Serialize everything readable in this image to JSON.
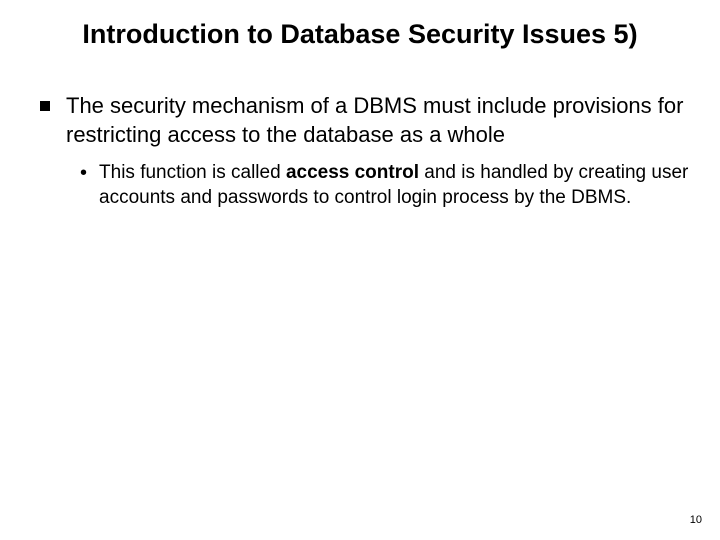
{
  "slide": {
    "title": "Introduction to Database Security Issues 5)",
    "bullets": {
      "main_text": "The security mechanism of a DBMS must include provisions for restricting access to the database as a whole",
      "sub_prefix": "This function is called ",
      "sub_bold": "access control",
      "sub_suffix": " and is handled by creating user accounts and passwords to control login process by the DBMS."
    },
    "page_number": "10"
  },
  "style": {
    "background_color": "#ffffff",
    "text_color": "#000000",
    "title_fontsize": 27,
    "main_fontsize": 22,
    "sub_fontsize": 19,
    "pagenum_fontsize": 11
  }
}
